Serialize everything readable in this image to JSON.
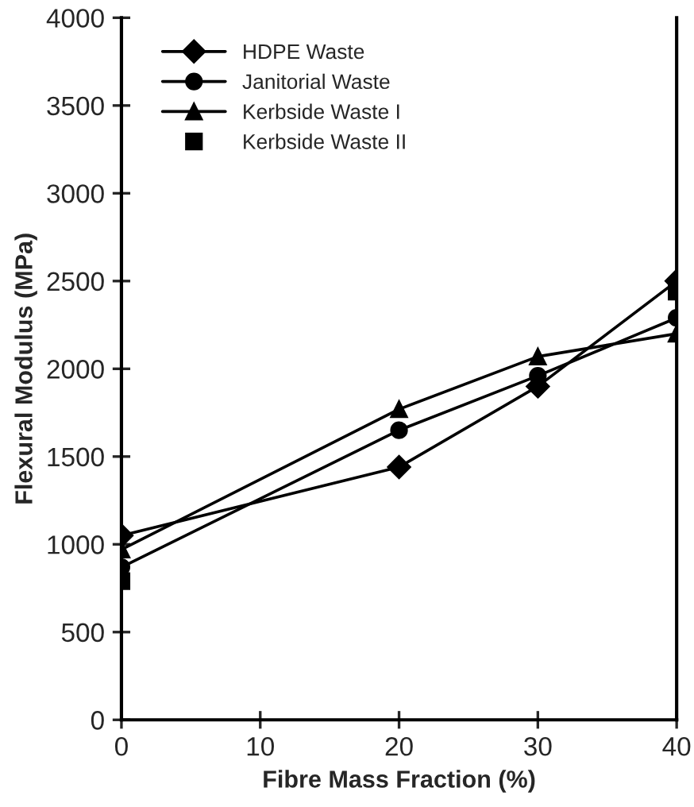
{
  "chart_data": {
    "type": "line",
    "xlabel": "Fibre Mass Fraction (%)",
    "ylabel": "Flexural Modulus (MPa)",
    "x": [
      0,
      20,
      30,
      40
    ],
    "series": [
      {
        "name": "HDPE Waste",
        "color": "#000000",
        "marker": "diamond",
        "values": [
          1050,
          1440,
          1900,
          2500
        ]
      },
      {
        "name": "Janitorial Waste",
        "color": "#000000",
        "marker": "circle",
        "values": [
          870,
          1650,
          1960,
          2290
        ]
      },
      {
        "name": "Kerbside Waste I",
        "color": "#000000",
        "marker": "triangle",
        "values": [
          970,
          1770,
          2070,
          2200
        ]
      },
      {
        "name": "Kerbside Waste II",
        "type": "scatter",
        "color": "#000000",
        "marker": "square",
        "values": [
          790,
          null,
          null,
          2440
        ]
      }
    ],
    "xlim": [
      0,
      40
    ],
    "xticks": [
      0,
      10,
      20,
      30,
      40
    ],
    "ylim": [
      0,
      4000
    ],
    "yticks": [
      0,
      500,
      1000,
      1500,
      2000,
      2500,
      3000,
      3500,
      4000
    ],
    "grid": false,
    "legend": "top left",
    "line_style": "solid"
  }
}
